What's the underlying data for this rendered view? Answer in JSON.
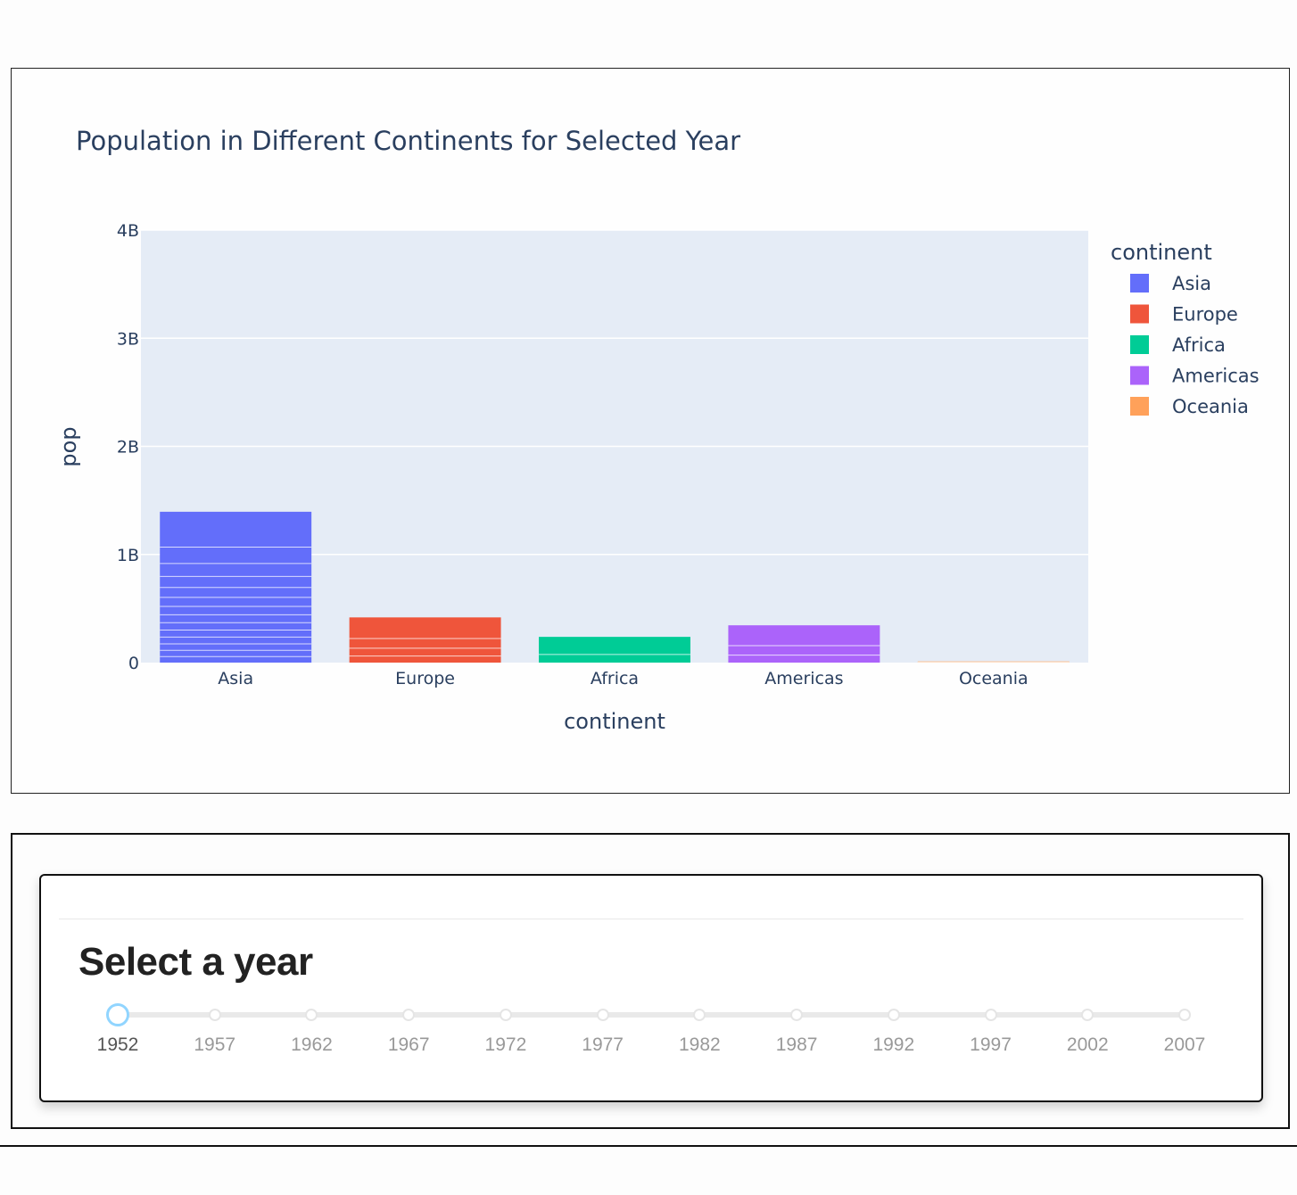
{
  "chart_data": {
    "type": "bar",
    "title": "Population in Different Continents for Selected Year",
    "xlabel": "continent",
    "ylabel": "pop",
    "categories": [
      "Asia",
      "Europe",
      "Africa",
      "Americas",
      "Oceania"
    ],
    "values": [
      1395000000,
      418000000,
      238000000,
      345000000,
      10700000
    ],
    "ylim": [
      0,
      4000000000
    ],
    "yticks": [
      {
        "value": 0,
        "label": "0"
      },
      {
        "value": 1000000000,
        "label": "1B"
      },
      {
        "value": 2000000000,
        "label": "2B"
      },
      {
        "value": 3000000000,
        "label": "3B"
      },
      {
        "value": 4000000000,
        "label": "4B"
      }
    ],
    "legend": {
      "title": "continent",
      "position": "right",
      "items": [
        {
          "label": "Asia",
          "color": "#636efa"
        },
        {
          "label": "Europe",
          "color": "#ef553b"
        },
        {
          "label": "Africa",
          "color": "#00cc96"
        },
        {
          "label": "Americas",
          "color": "#ab63fa"
        },
        {
          "label": "Oceania",
          "color": "#ffa15a"
        }
      ]
    },
    "grid": true,
    "plot_bgcolor": "#e5ecf6"
  },
  "slider": {
    "title": "Select a year",
    "years": [
      "1952",
      "1957",
      "1962",
      "1967",
      "1972",
      "1977",
      "1982",
      "1987",
      "1992",
      "1997",
      "2002",
      "2007"
    ],
    "selected": "1952"
  },
  "colors": {
    "text": "#2a3f5f",
    "handle": "#91d5ff"
  }
}
